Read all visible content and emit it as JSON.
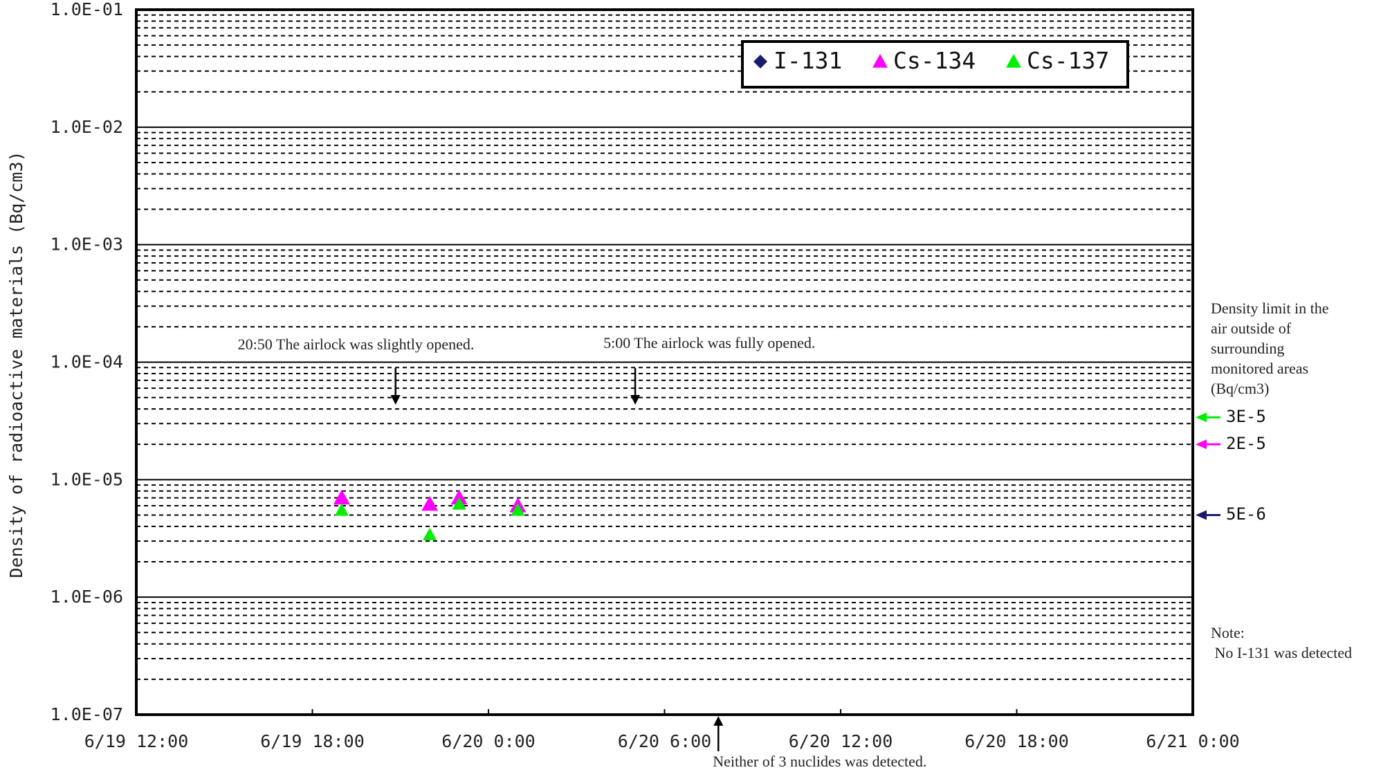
{
  "chart_data": {
    "type": "scatter",
    "title": "",
    "ylabel": "Density of radioactive materials (Bq/cm3)",
    "xlabel": "",
    "yscale": "log",
    "ylim": [
      1e-07,
      0.1
    ],
    "y_tick_labels": [
      "1.0E-07",
      "1.0E-06",
      "1.0E-05",
      "1.0E-04",
      "1.0E-03",
      "1.0E-02",
      "1.0E-01"
    ],
    "xlim": [
      "2011-06-19 12:00",
      "2011-06-21 00:00"
    ],
    "x_tick_labels": [
      "6/19 12:00",
      "6/19 18:00",
      "6/20 0:00",
      "6/20 6:00",
      "6/20 12:00",
      "6/20 18:00",
      "6/21 0:00"
    ],
    "grid": true,
    "legend_position": "top-right",
    "series": [
      {
        "name": "I-131",
        "color": "#1a1a6e",
        "marker": "diamond",
        "points": []
      },
      {
        "name": "Cs-134",
        "color": "#ff00ff",
        "marker": "triangle",
        "points": [
          {
            "x": "2011-06-19 19:00",
            "y": 7e-06
          },
          {
            "x": "2011-06-19 22:00",
            "y": 6.2e-06
          },
          {
            "x": "2011-06-19 23:00",
            "y": 7e-06
          },
          {
            "x": "2011-06-20 01:00",
            "y": 6e-06
          }
        ]
      },
      {
        "name": "Cs-137",
        "color": "#00ee00",
        "marker": "triangle",
        "points": [
          {
            "x": "2011-06-19 19:00",
            "y": 5.5e-06
          },
          {
            "x": "2011-06-19 22:00",
            "y": 3.4e-06
          },
          {
            "x": "2011-06-19 23:00",
            "y": 6.2e-06
          },
          {
            "x": "2011-06-20 01:00",
            "y": 5.5e-06
          }
        ]
      }
    ],
    "annotations": [
      {
        "text": "20:50 The airlock was slightly opened.",
        "x": "2011-06-19 20:50",
        "arrow": "down"
      },
      {
        "text": "5:00 The airlock was fully opened.",
        "x": "2011-06-20 05:00",
        "arrow": "down"
      },
      {
        "text": "Neither of 3 nuclides was detected.",
        "x": "2011-06-20 07:50",
        "arrow": "up"
      }
    ],
    "limits": {
      "heading_lines": [
        "Density limit in the",
        "air outside of",
        "surrounding",
        "monitored areas",
        "(Bq/cm3)"
      ],
      "items": [
        {
          "label": "3E-5",
          "value": 3e-05,
          "color": "#00ee00"
        },
        {
          "label": "2E-5",
          "value": 2e-05,
          "color": "#ff00ff"
        },
        {
          "label": "5E-6",
          "value": 5e-06,
          "color": "#1a1a6e"
        }
      ]
    },
    "note_lines": [
      "Note:",
      " No I-131 was detected"
    ]
  }
}
